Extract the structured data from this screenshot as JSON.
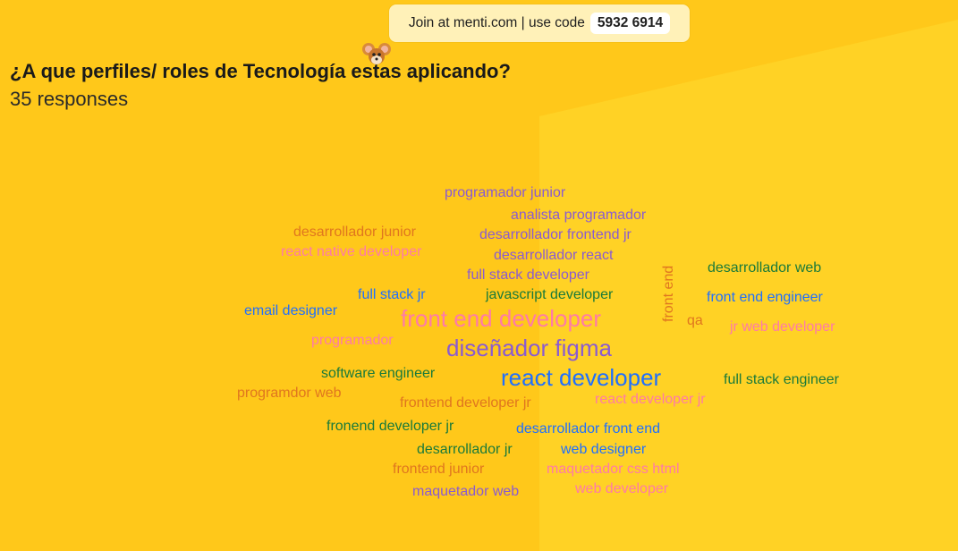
{
  "join": {
    "text": "Join at menti.com | use code",
    "code": "5932 6914"
  },
  "question": "¿A que perfiles/ roles de Tecnología estas aplicando?",
  "responses_text": "35 responses",
  "colors": {
    "background": "#ffc81a",
    "panel": "#ffd225",
    "purple": "#8a5bd1",
    "orange": "#e0761f",
    "pink": "#ff7aa8",
    "blue": "#1f6fff",
    "green": "#1a7a3a"
  },
  "words": [
    "programador junior",
    "analista programador",
    "desarrollador junior",
    "desarrollador frontend jr",
    "react native developer",
    "desarrollador react",
    "desarrollador web",
    "full stack developer",
    "front end",
    "full stack jr",
    "javascript developer",
    "front end engineer",
    "email designer",
    "front end developer",
    "qa",
    "jr web developer",
    "programador",
    "diseñador figma",
    "software engineer",
    "react developer",
    "full stack engineer",
    "programdor web",
    "frontend developer jr",
    "react developer jr",
    "fronend developer jr",
    "desarrollador front end",
    "desarrollador jr",
    "web designer",
    "frontend junior",
    "maquetador css html",
    "maquetador web",
    "web developer"
  ]
}
